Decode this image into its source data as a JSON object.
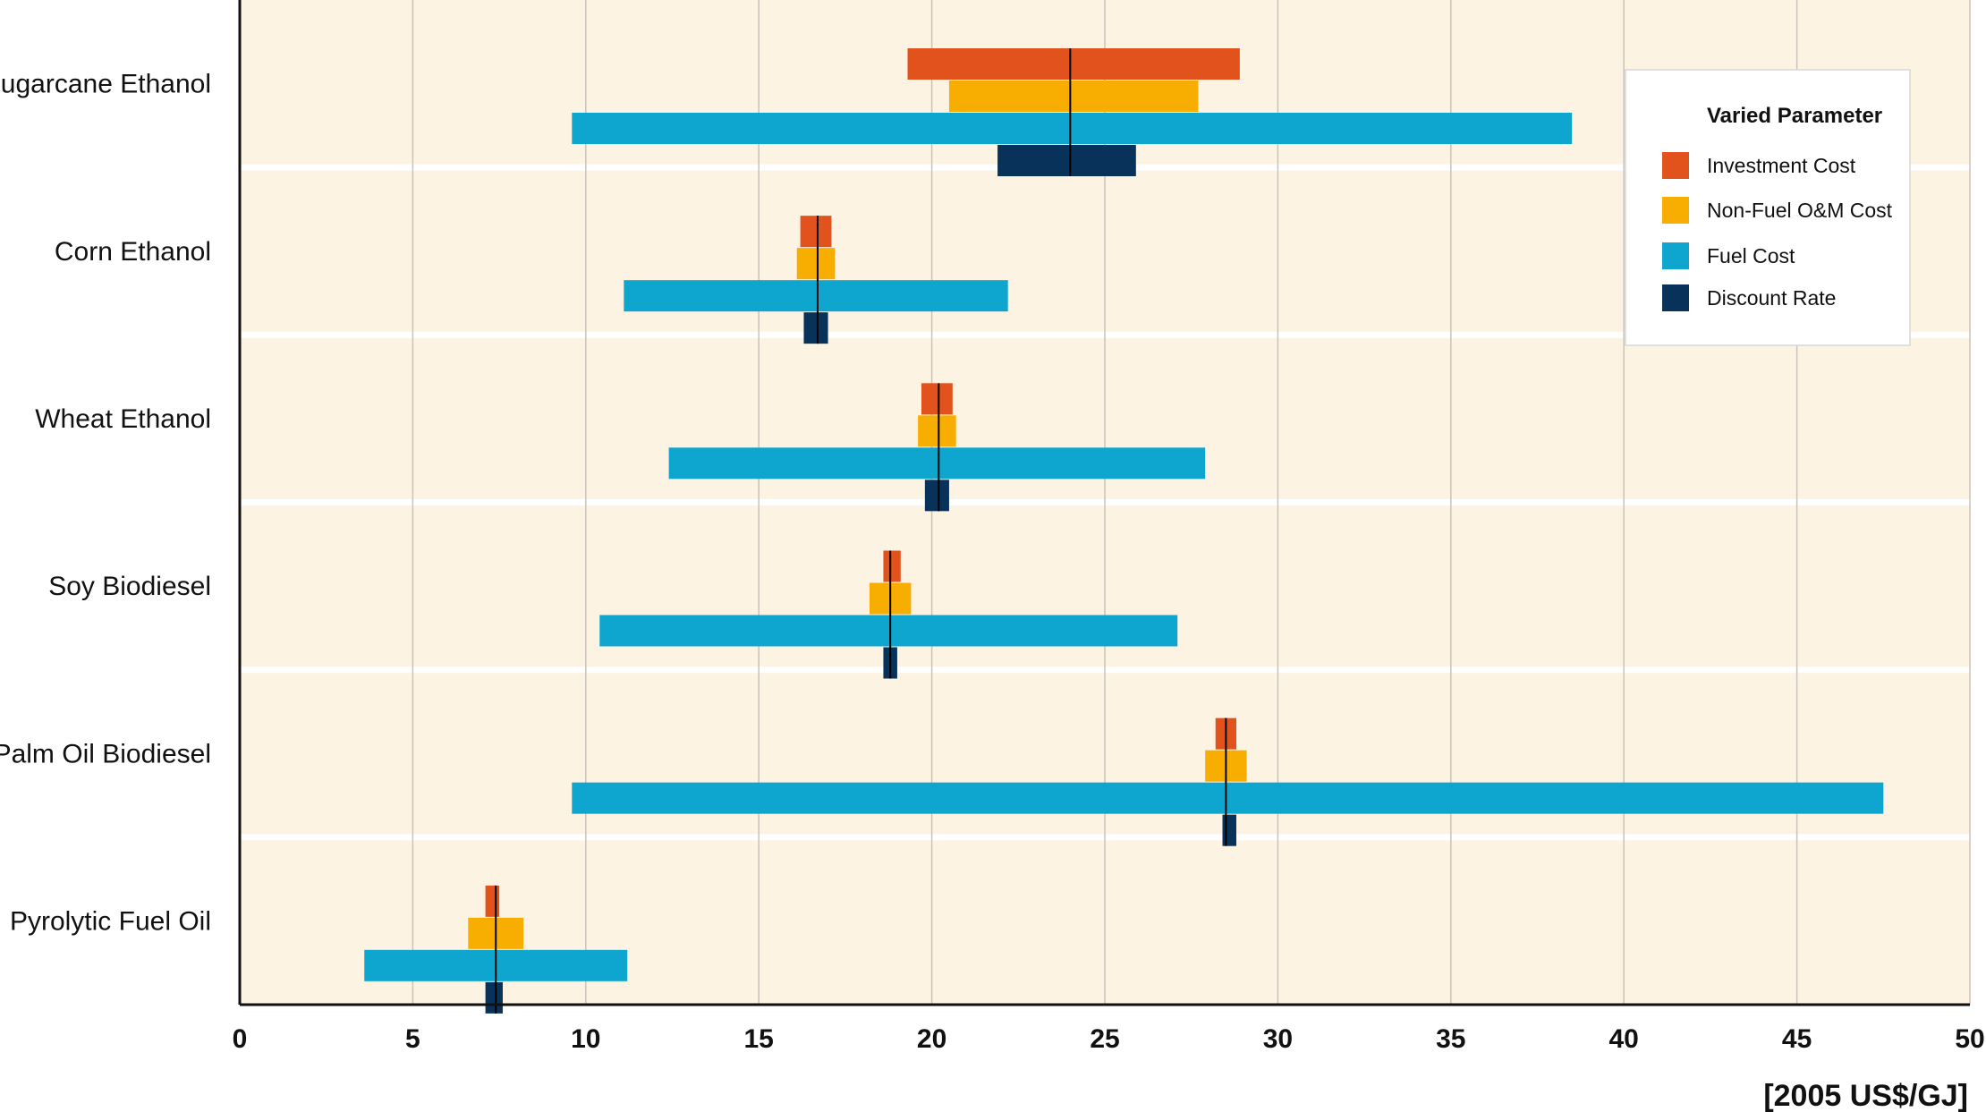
{
  "chart_data": {
    "type": "bar",
    "subtype": "tornado sensitivity ranges",
    "categories": [
      "Sugarcane Ethanol",
      "Corn Ethanol",
      "Wheat Ethanol",
      "Soy Biodiesel",
      "Palm Oil Biodiesel",
      "Pyrolytic Fuel Oil"
    ],
    "series": [
      {
        "name": "Investment Cost",
        "color": "#E1521C",
        "ranges": [
          [
            19.3,
            28.9
          ],
          [
            16.2,
            17.1
          ],
          [
            19.7,
            20.6
          ],
          [
            18.6,
            19.1
          ],
          [
            28.2,
            28.8
          ],
          [
            7.1,
            7.5
          ]
        ]
      },
      {
        "name": "Non-Fuel O&M Cost",
        "color": "#F7AE00",
        "ranges": [
          [
            20.5,
            27.7
          ],
          [
            16.1,
            17.2
          ],
          [
            19.6,
            20.7
          ],
          [
            18.2,
            19.4
          ],
          [
            27.9,
            29.1
          ],
          [
            6.6,
            8.2
          ]
        ]
      },
      {
        "name": "Fuel Cost",
        "color": "#0EA5CF",
        "ranges": [
          [
            9.6,
            38.5
          ],
          [
            11.1,
            22.2
          ],
          [
            12.4,
            27.9
          ],
          [
            10.4,
            27.1
          ],
          [
            9.6,
            47.5
          ],
          [
            3.6,
            11.2
          ]
        ]
      },
      {
        "name": "Discount Rate",
        "color": "#08325A",
        "ranges": [
          [
            21.9,
            25.9
          ],
          [
            16.3,
            17.0
          ],
          [
            19.8,
            20.5
          ],
          [
            18.6,
            19.0
          ],
          [
            28.4,
            28.8
          ],
          [
            7.1,
            7.6
          ]
        ]
      }
    ],
    "base_values": [
      24.0,
      16.7,
      20.2,
      18.8,
      28.5,
      7.4
    ],
    "x_ticks": [
      "0",
      "5",
      "10",
      "15",
      "20",
      "25",
      "30",
      "35",
      "40",
      "45",
      "50"
    ],
    "xlim": [
      0,
      50
    ],
    "xlabel": "[2005 US$/GJ]",
    "legend": {
      "title": "Varied Parameter",
      "placement": "top-right"
    },
    "background_color": "#FDF3E3",
    "grid": true
  }
}
